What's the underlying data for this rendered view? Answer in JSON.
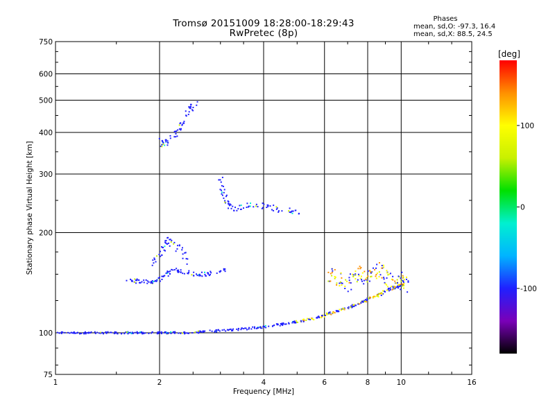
{
  "header": {
    "title": "Tromsø 20151009 18:28:00-18:29:43",
    "subtitle": "RwPretec (8p)",
    "phase_heading": "Phases",
    "stat_o": "mean, sd,O: -97.3, 16.4",
    "stat_x": "mean, sd,X:  88.5, 24.5"
  },
  "colorbar": {
    "label": "[deg]",
    "ticks": [
      100,
      0,
      -100
    ],
    "range": [
      -180,
      180
    ],
    "colors": [
      "#000000",
      "#7a00b8",
      "#2020ff",
      "#00b4ff",
      "#00f0d0",
      "#00e000",
      "#c8f000",
      "#ffff00",
      "#ff9000",
      "#ff0000"
    ]
  },
  "chart_data": {
    "type": "scatter",
    "title": "Tromsø 20151009 18:28:00-18:29:43",
    "subtitle": "RwPretec (8p)",
    "xlabel": "Frequency [MHz]",
    "ylabel": "Stationary phase Virtual Height [km]",
    "xscale": "log",
    "yscale": "log",
    "xlim": [
      1,
      16
    ],
    "ylim": [
      75,
      750
    ],
    "xticks": [
      1,
      2,
      4,
      6,
      8,
      10,
      16
    ],
    "yticks": [
      75,
      100,
      200,
      300,
      400,
      500,
      600,
      750
    ],
    "grid": true,
    "color_variable": "phase [deg]",
    "series": [
      {
        "x": [
          1.02,
          1.15,
          1.3,
          1.5,
          1.7,
          1.9,
          2.1,
          2.4,
          2.8,
          3.2,
          3.6,
          4.0,
          4.5,
          5.0,
          5.5,
          6.0,
          6.5,
          7.0,
          7.5,
          8.0,
          8.6,
          9.2,
          9.8,
          10.2
        ],
        "y": [
          100,
          100,
          100,
          100,
          100,
          100,
          100,
          100,
          101,
          102,
          103,
          104,
          106,
          108,
          110,
          113,
          116,
          119,
          122,
          126,
          130,
          135,
          138,
          140
        ]
      },
      {
        "x": [
          1.6,
          1.7,
          1.8,
          1.9,
          2.0,
          2.1,
          2.2,
          2.3,
          2.5,
          2.7,
          2.9,
          3.1
        ],
        "y": [
          145,
          143,
          142,
          143,
          145,
          150,
          155,
          153,
          150,
          150,
          152,
          155
        ]
      },
      {
        "x": [
          1.9,
          2.0,
          2.05,
          2.1,
          2.2,
          2.3,
          2.4
        ],
        "y": [
          160,
          170,
          180,
          190,
          185,
          175,
          165
        ]
      },
      {
        "x": [
          2.0,
          2.05,
          2.15,
          2.25,
          2.35,
          2.45,
          2.55
        ],
        "y": [
          380,
          370,
          380,
          400,
          430,
          470,
          500
        ]
      },
      {
        "x": [
          3.0,
          3.05,
          3.1,
          3.2,
          3.3,
          3.5,
          3.8,
          4.1,
          4.4,
          4.8,
          5.1
        ],
        "y": [
          290,
          270,
          250,
          240,
          235,
          240,
          242,
          240,
          235,
          232,
          230
        ]
      },
      {
        "x": [
          6.2,
          6.6,
          7.0,
          7.5,
          8.0,
          8.5,
          9.0,
          9.5,
          10.0,
          10.4
        ],
        "y": [
          150,
          145,
          140,
          150,
          145,
          155,
          150,
          140,
          145,
          140
        ]
      }
    ]
  }
}
